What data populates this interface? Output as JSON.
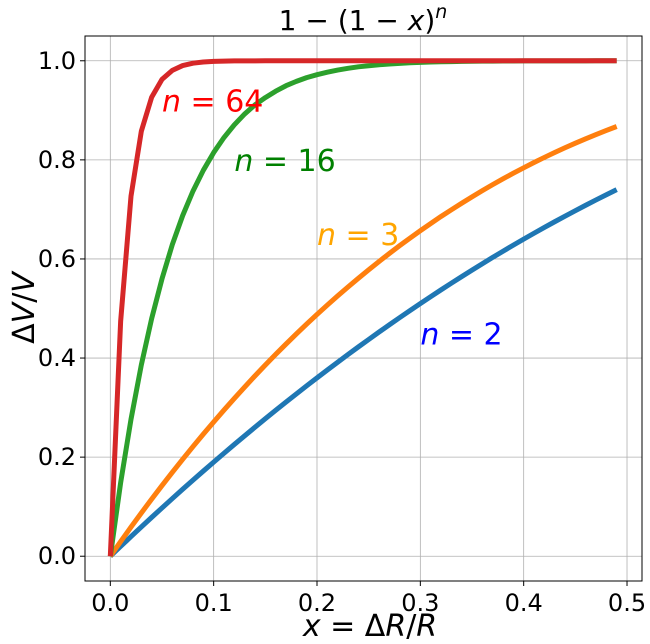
{
  "chart_data": {
    "type": "line",
    "title_parts": [
      "1 − (1 − ",
      "x",
      ")",
      "n"
    ],
    "xlabel_parts": [
      "x",
      " = Δ",
      "R",
      "/",
      "R"
    ],
    "ylabel_parts": [
      "Δ",
      "V",
      "/",
      "V"
    ],
    "xlim": [
      -0.0245,
      0.5145
    ],
    "ylim": [
      -0.05,
      1.05
    ],
    "xticks": [
      0.0,
      0.1,
      0.2,
      0.3,
      0.4,
      0.5
    ],
    "xtick_labels": [
      "0.0",
      "0.1",
      "0.2",
      "0.3",
      "0.4",
      "0.5"
    ],
    "yticks": [
      0.0,
      0.2,
      0.4,
      0.6,
      0.8,
      1.0
    ],
    "ytick_labels": [
      "0.0",
      "0.2",
      "0.4",
      "0.6",
      "0.8",
      "1.0"
    ],
    "grid": true,
    "x": [
      0.0,
      0.01,
      0.02,
      0.03,
      0.04,
      0.05,
      0.06,
      0.07,
      0.08,
      0.09,
      0.1,
      0.11,
      0.12,
      0.13,
      0.14,
      0.15,
      0.16,
      0.17,
      0.18,
      0.19,
      0.2,
      0.21,
      0.22,
      0.23,
      0.24,
      0.25,
      0.26,
      0.27,
      0.28,
      0.29,
      0.3,
      0.31,
      0.32,
      0.33,
      0.34,
      0.35,
      0.36,
      0.37,
      0.38,
      0.39,
      0.4,
      0.41,
      0.42,
      0.43,
      0.44,
      0.45,
      0.46,
      0.47,
      0.48,
      0.49
    ],
    "series": [
      {
        "n": 2,
        "color": "#1f77b4",
        "values": [
          0.0,
          0.0199,
          0.0396,
          0.0591,
          0.0784,
          0.0975,
          0.1164,
          0.1351,
          0.1536,
          0.1719,
          0.19,
          0.2079,
          0.2256,
          0.2431,
          0.2604,
          0.2775,
          0.2944,
          0.3111,
          0.3276,
          0.3439,
          0.36,
          0.3759,
          0.3916,
          0.4071,
          0.4224,
          0.4375,
          0.4524,
          0.4671,
          0.4816,
          0.4959,
          0.51,
          0.5239,
          0.5376,
          0.5511,
          0.5644,
          0.5775,
          0.5904,
          0.6031,
          0.6156,
          0.6279,
          0.64,
          0.6519,
          0.6636,
          0.6751,
          0.6864,
          0.6975,
          0.7084,
          0.7191,
          0.7296,
          0.7399
        ]
      },
      {
        "n": 3,
        "color": "#ff7f0e",
        "values": [
          0.0,
          0.0297,
          0.0588,
          0.0873,
          0.1153,
          0.1426,
          0.1694,
          0.1956,
          0.2213,
          0.2464,
          0.271,
          0.295,
          0.3185,
          0.3415,
          0.364,
          0.3859,
          0.4073,
          0.4282,
          0.4486,
          0.4686,
          0.488,
          0.5069,
          0.5254,
          0.5434,
          0.561,
          0.5781,
          0.5948,
          0.611,
          0.6268,
          0.6421,
          0.657,
          0.6715,
          0.6857,
          0.6992,
          0.7125,
          0.7254,
          0.7379,
          0.75,
          0.7617,
          0.7731,
          0.784,
          0.7946,
          0.8049,
          0.8148,
          0.8244,
          0.8336,
          0.8425,
          0.8511,
          0.8594,
          0.8673
        ]
      },
      {
        "n": 16,
        "color": "#2ca02c",
        "values": [
          0.0,
          0.1485,
          0.2762,
          0.3861,
          0.4796,
          0.5599,
          0.629,
          0.6874,
          0.737,
          0.7789,
          0.8147,
          0.8451,
          0.8708,
          0.8927,
          0.9111,
          0.9257,
          0.9386,
          0.9496,
          0.9584,
          0.966,
          0.9719,
          0.9769,
          0.9813,
          0.9848,
          0.9878,
          0.99,
          0.992,
          0.9935,
          0.9948,
          0.9959,
          0.9967,
          0.9974,
          0.9979,
          0.9984,
          0.9987,
          0.999,
          0.9992,
          0.9994,
          0.9995,
          0.9996,
          0.9997,
          0.9998,
          0.9998,
          0.9999,
          0.9999,
          0.9999,
          0.9999,
          1.0,
          1.0,
          1.0
        ]
      },
      {
        "n": 64,
        "color": "#d62728",
        "values": [
          0.0,
          0.4744,
          0.7265,
          0.8578,
          0.9264,
          0.9625,
          0.9807,
          0.9903,
          0.9951,
          0.9976,
          0.9988,
          0.9994,
          0.9997,
          0.9999,
          0.9999,
          1.0,
          1.0,
          1.0,
          1.0,
          1.0,
          1.0,
          1.0,
          1.0,
          1.0,
          1.0,
          1.0,
          1.0,
          1.0,
          1.0,
          1.0,
          1.0,
          1.0,
          1.0,
          1.0,
          1.0,
          1.0,
          1.0,
          1.0,
          1.0,
          1.0,
          1.0,
          1.0,
          1.0,
          1.0,
          1.0,
          1.0,
          1.0,
          1.0,
          1.0,
          1.0
        ]
      }
    ],
    "annotations": [
      {
        "text_var": "n",
        "text_rest": " = 64",
        "color": "#ff0000",
        "x": 0.05,
        "y": 0.92
      },
      {
        "text_var": "n",
        "text_rest": " = 16",
        "color": "#008000",
        "x": 0.12,
        "y": 0.8
      },
      {
        "text_var": "n",
        "text_rest": " = 3",
        "color": "#ffa500",
        "x": 0.2,
        "y": 0.65
      },
      {
        "text_var": "n",
        "text_rest": " = 2",
        "color": "#0000ff",
        "x": 0.3,
        "y": 0.45
      }
    ]
  }
}
